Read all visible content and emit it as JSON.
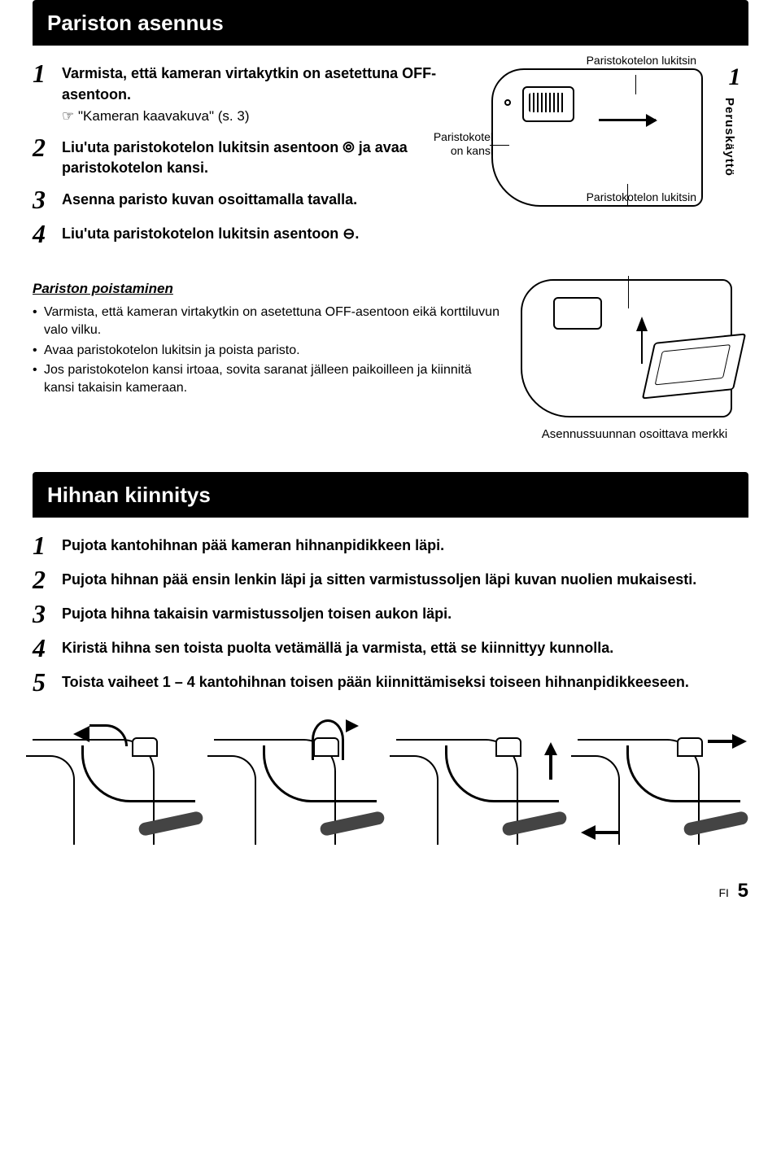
{
  "battery_section": {
    "title": "Pariston asennus",
    "steps": [
      {
        "num": "1",
        "text": "Varmista, että kameran virtakytkin on asetettuna OFF-asentoon.",
        "sub_prefix": "☞",
        "sub": "\"Kameran kaavakuva\" (s. 3)"
      },
      {
        "num": "2",
        "text": "Liu'uta paristokotelon lukitsin asentoon ⦾ ja avaa paristokotelon kansi."
      },
      {
        "num": "3",
        "text": "Asenna paristo kuvan osoittamalla tavalla."
      },
      {
        "num": "4",
        "text": "Liu'uta paristokotelon lukitsin asentoon ⊖."
      }
    ],
    "diagram_labels": {
      "top": "Paristokotelon lukitsin",
      "left": "Paristokotel on kansi",
      "bottom": "Paristokotelon lukitsin"
    },
    "side_tab": {
      "num": "1",
      "label": "Peruskäyttö"
    },
    "removal": {
      "title": "Pariston poistaminen",
      "items": [
        "Varmista, että kameran virtakytkin on asetettuna OFF-asentoon eikä korttiluvun valo vilku.",
        "Avaa paristokotelon lukitsin ja poista paristo.",
        "Jos paristokotelon kansi irtoaa, sovita saranat jälleen paikoilleen ja kiinnitä kansi takaisin kameraan."
      ],
      "direction_label": "Asennussuunnan osoittava merkki"
    }
  },
  "strap_section": {
    "title": "Hihnan kiinnitys",
    "steps": [
      {
        "num": "1",
        "text": "Pujota kantohihnan pää kameran hihnanpidikkeen läpi."
      },
      {
        "num": "2",
        "text": "Pujota hihnan pää ensin lenkin läpi ja sitten varmistussoljen läpi kuvan nuolien mukaisesti."
      },
      {
        "num": "3",
        "text": "Pujota hihna takaisin varmistussoljen toisen aukon läpi."
      },
      {
        "num": "4",
        "text": "Kiristä hihna sen toista puolta vetämällä ja varmista, että se kiinnittyy kunnolla."
      },
      {
        "num": "5",
        "text": "Toista vaiheet 1 – 4 kantohihnan toisen pään kiinnittämiseksi toiseen hihnanpidikkeeseen."
      }
    ]
  },
  "footer": {
    "lang": "FI",
    "page": "5"
  }
}
